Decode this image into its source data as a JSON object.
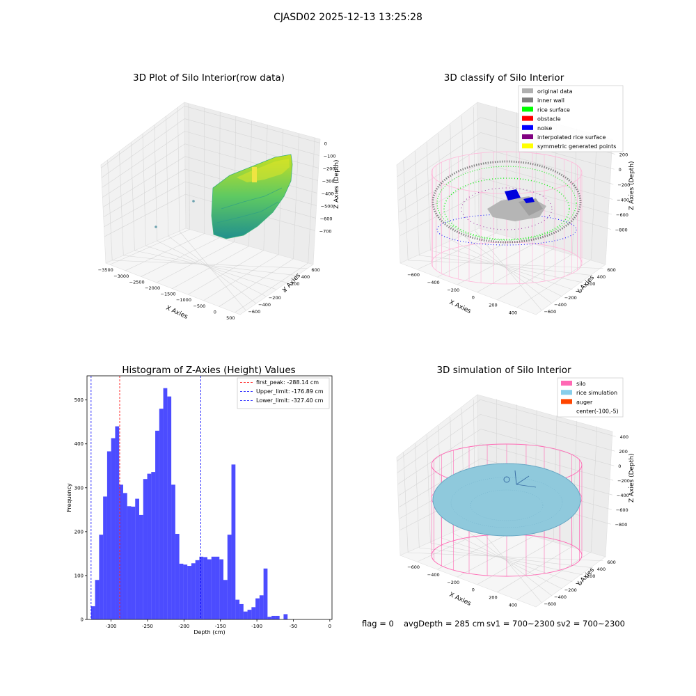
{
  "figure": {
    "suptitle": "CJASD02 2025-12-13 13:25:28",
    "footer": {
      "flag": "flag = 0",
      "avg": "avgDepth = 285 cm",
      "sv1": "sv1 = 700~2300",
      "sv2": "sv2 = 700~2300"
    }
  },
  "chart_data": [
    {
      "type": "scatter",
      "projection": "3d",
      "title": "3D Plot of Silo Interior(row data)",
      "xlabel": "X Axies",
      "ylabel": "Y Axies",
      "zlabel": "Z Axies (Depth)",
      "x_ticks": [
        "−3500",
        "−3000",
        "−2500",
        "−2000",
        "−1500",
        "−1000",
        "−500",
        "0",
        "500"
      ],
      "y_ticks": [
        "600",
        "400",
        "200",
        "0",
        "−200",
        "−400",
        "−600"
      ],
      "z_ticks": [
        "0",
        "−100",
        "−200",
        "−300",
        "−400",
        "−500",
        "−600",
        "−700"
      ],
      "colormap": "viridis",
      "grid": true
    },
    {
      "type": "scatter",
      "projection": "3d",
      "title": "3D classify of Silo Interior",
      "xlabel": "X Axies",
      "ylabel": "Y Axies",
      "zlabel": "Z Axies (Depth)",
      "x_ticks": [
        "−600",
        "−400",
        "−200",
        "0",
        "200",
        "400"
      ],
      "y_ticks": [
        "600",
        "400",
        "200",
        "0",
        "−200",
        "−400",
        "−600"
      ],
      "z_ticks": [
        "200",
        "0",
        "−200",
        "−400",
        "−600",
        "−800"
      ],
      "z_ticks_partial": "00",
      "legend_position": "top-right",
      "legend": [
        {
          "label": "original data",
          "color": "#b0b0b0"
        },
        {
          "label": "inner wall",
          "color": "#808080"
        },
        {
          "label": "rice surface",
          "color": "#00ff00"
        },
        {
          "label": "obstacle",
          "color": "#ff0000"
        },
        {
          "label": "noise",
          "color": "#0000ff"
        },
        {
          "label": "interpolated rice surface",
          "color": "#800080"
        },
        {
          "label": "symmetric generated points",
          "color": "#ffff00"
        }
      ],
      "grid": true
    },
    {
      "type": "bar",
      "title": "Histogram of Z-Axies (Height) Values",
      "xlabel": "Depth (cm)",
      "ylabel": "Frequency",
      "xlim": [
        -333,
        3
      ],
      "ylim": [
        0,
        555
      ],
      "x_ticks": [
        -300,
        -250,
        -200,
        -150,
        -100,
        -50,
        0
      ],
      "y_ticks": [
        0,
        100,
        200,
        300,
        400,
        500
      ],
      "bin_width": 5.5,
      "bin_start": -327.4,
      "values": [
        30,
        90,
        193,
        280,
        383,
        413,
        440,
        307,
        288,
        258,
        257,
        275,
        238,
        320,
        332,
        336,
        430,
        480,
        527,
        508,
        307,
        195,
        127,
        125,
        122,
        128,
        135,
        143,
        142,
        137,
        143,
        143,
        137,
        90,
        193,
        353,
        45,
        35,
        18,
        22,
        28,
        48,
        55,
        116,
        6,
        8,
        8,
        0,
        12
      ],
      "bar_color": "#0000ff",
      "bar_opacity": 0.7,
      "reference_lines": [
        {
          "label": "first_peak: -288.14 cm",
          "x": -288.14,
          "color": "#ff0000",
          "dash": "dashed"
        },
        {
          "label": "Upper_limit: -176.89 cm",
          "x": -176.89,
          "color": "#0000ff",
          "dash": "dashed"
        },
        {
          "label": "Lower_limit: -327.40 cm",
          "x": -327.4,
          "color": "#0000ff",
          "dash": "dashed"
        }
      ],
      "legend_position": "top-right",
      "grid": false
    },
    {
      "type": "scatter",
      "projection": "3d",
      "title": "3D simulation of Silo Interior",
      "xlabel": "X Axies",
      "ylabel": "Y Axies",
      "zlabel": "Z Axies (Depth)",
      "x_ticks": [
        "−600",
        "−400",
        "−200",
        "0",
        "200",
        "400"
      ],
      "y_ticks": [
        "600",
        "400",
        "200",
        "0",
        "−200",
        "−400",
        "−600"
      ],
      "z_ticks": [
        "400",
        "200",
        "0",
        "−200",
        "−400",
        "−600",
        "−800"
      ],
      "legend_position": "top-right",
      "legend": [
        {
          "label": "silo",
          "color": "#ff69b4"
        },
        {
          "label": "rice simulation",
          "color": "#87ceeb"
        },
        {
          "label": "auger",
          "color": "#ff4500"
        },
        {
          "label": "center(-100,-5)",
          "color": "none"
        }
      ],
      "grid": true
    }
  ]
}
